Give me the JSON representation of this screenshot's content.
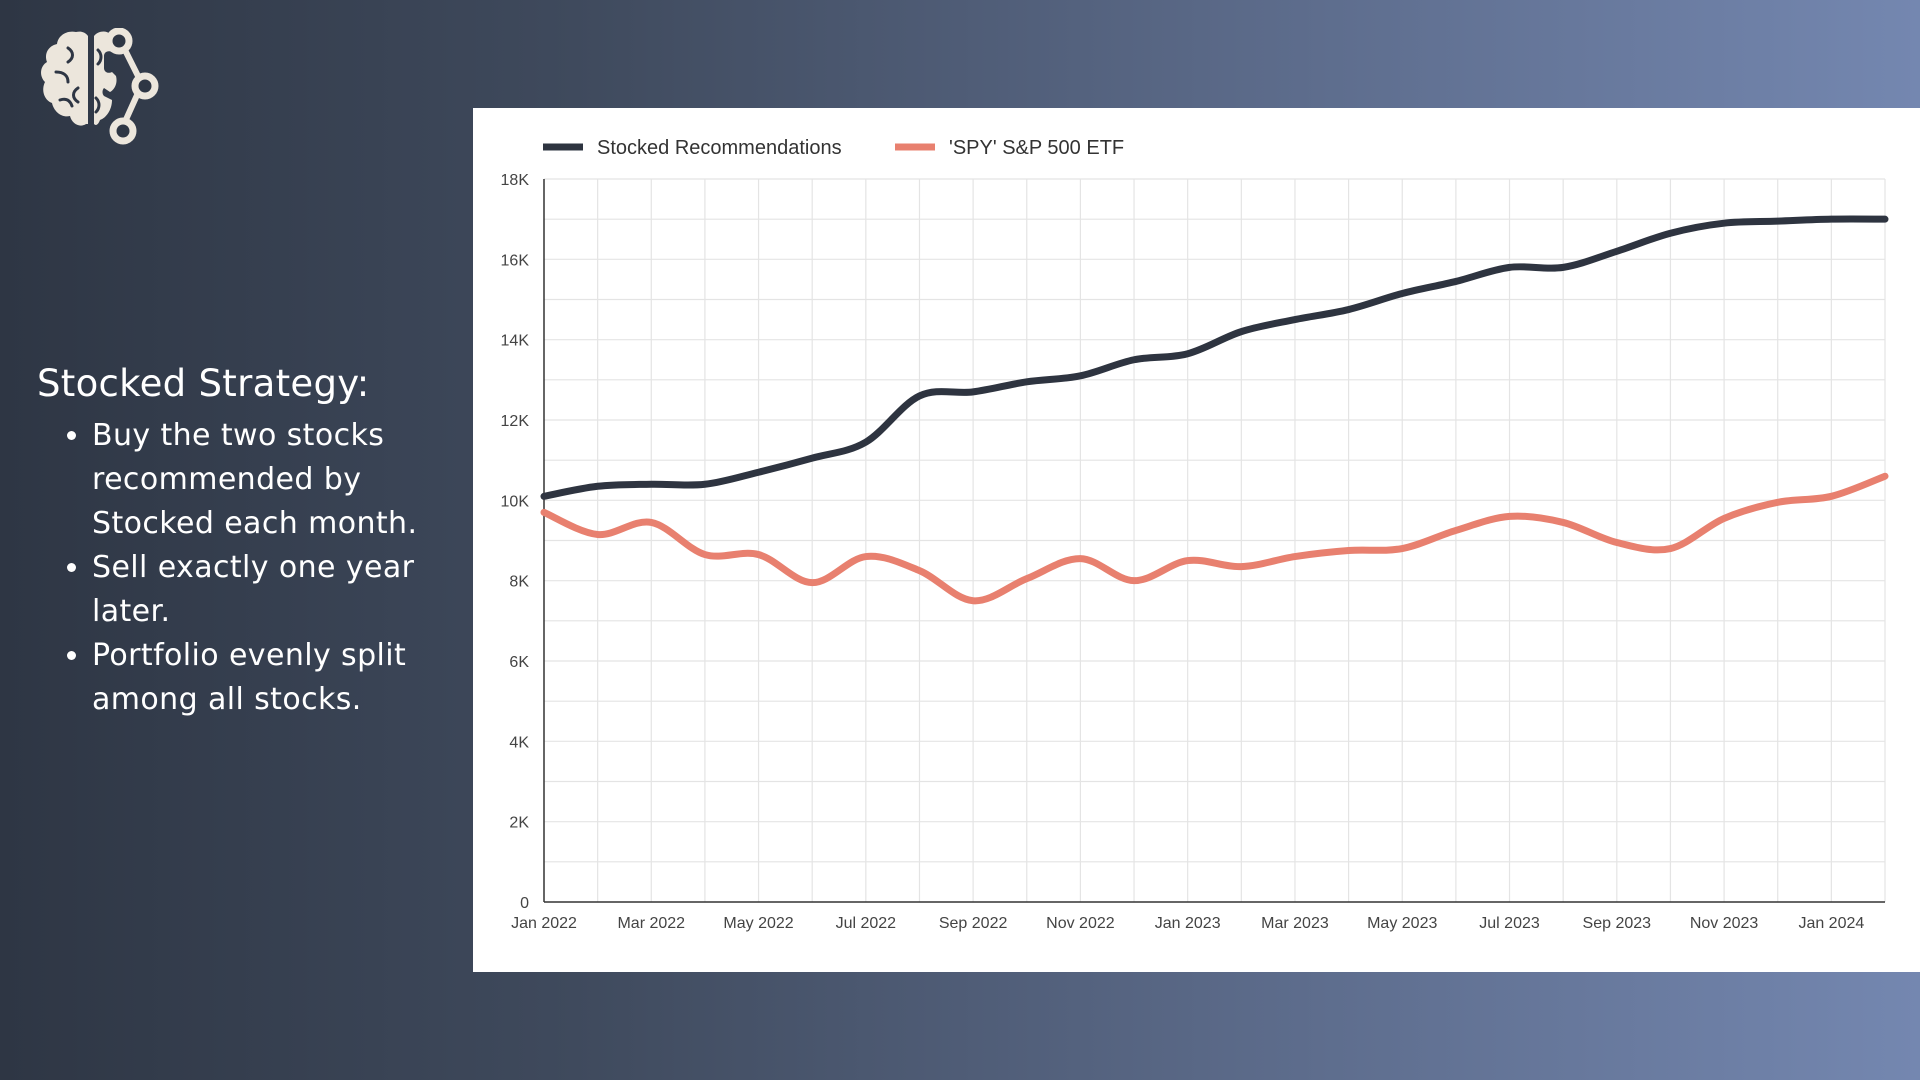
{
  "logo": {
    "icon": "brain-network-icon",
    "color": "#ece6dc"
  },
  "strategy": {
    "title": "Stocked Strategy:",
    "bullets": [
      "Buy the two stocks recommended by Stocked each month.",
      "Sell exactly one year later.",
      "Portfolio evenly split among all stocks."
    ]
  },
  "chart_data": {
    "type": "line",
    "legend_position": "top-left",
    "grid": true,
    "x_ticks": [
      "Jan 2022",
      "Mar 2022",
      "May 2022",
      "Jul 2022",
      "Sep 2022",
      "Nov 2022",
      "Jan 2023",
      "Mar 2023",
      "May 2023",
      "Jul 2023",
      "Sep 2023",
      "Nov 2023",
      "Jan 2024"
    ],
    "y_ticks": [
      "0",
      "2K",
      "4K",
      "6K",
      "8K",
      "10K",
      "12K",
      "14K",
      "16K",
      "18K"
    ],
    "ylim": [
      0,
      18000
    ],
    "x": [
      "Jan 2022",
      "Feb 2022",
      "Mar 2022",
      "Apr 2022",
      "May 2022",
      "Jun 2022",
      "Jul 2022",
      "Aug 2022",
      "Sep 2022",
      "Oct 2022",
      "Nov 2022",
      "Dec 2022",
      "Jan 2023",
      "Feb 2023",
      "Mar 2023",
      "Apr 2023",
      "May 2023",
      "Jun 2023",
      "Jul 2023",
      "Aug 2023",
      "Sep 2023",
      "Oct 2023",
      "Nov 2023",
      "Dec 2023",
      "Jan 2024",
      "Feb 2024"
    ],
    "series": [
      {
        "name": "Stocked Recommendations",
        "color": "#2e3440",
        "values": [
          10100,
          10350,
          10400,
          10400,
          10700,
          11050,
          11450,
          12600,
          12700,
          12950,
          13100,
          13500,
          13650,
          14200,
          14500,
          14750,
          15150,
          15450,
          15800,
          15800,
          16200,
          16650,
          16900,
          16950,
          17000,
          17000
        ]
      },
      {
        "name": "'SPY' S&P 500 ETF",
        "color": "#e8806f",
        "values": [
          9700,
          9150,
          9450,
          8650,
          8650,
          7950,
          8600,
          8250,
          7500,
          8050,
          8550,
          8000,
          8500,
          8350,
          8600,
          8750,
          8800,
          9250,
          9600,
          9450,
          8950,
          8800,
          9550,
          9950,
          10100,
          10600
        ]
      }
    ]
  }
}
